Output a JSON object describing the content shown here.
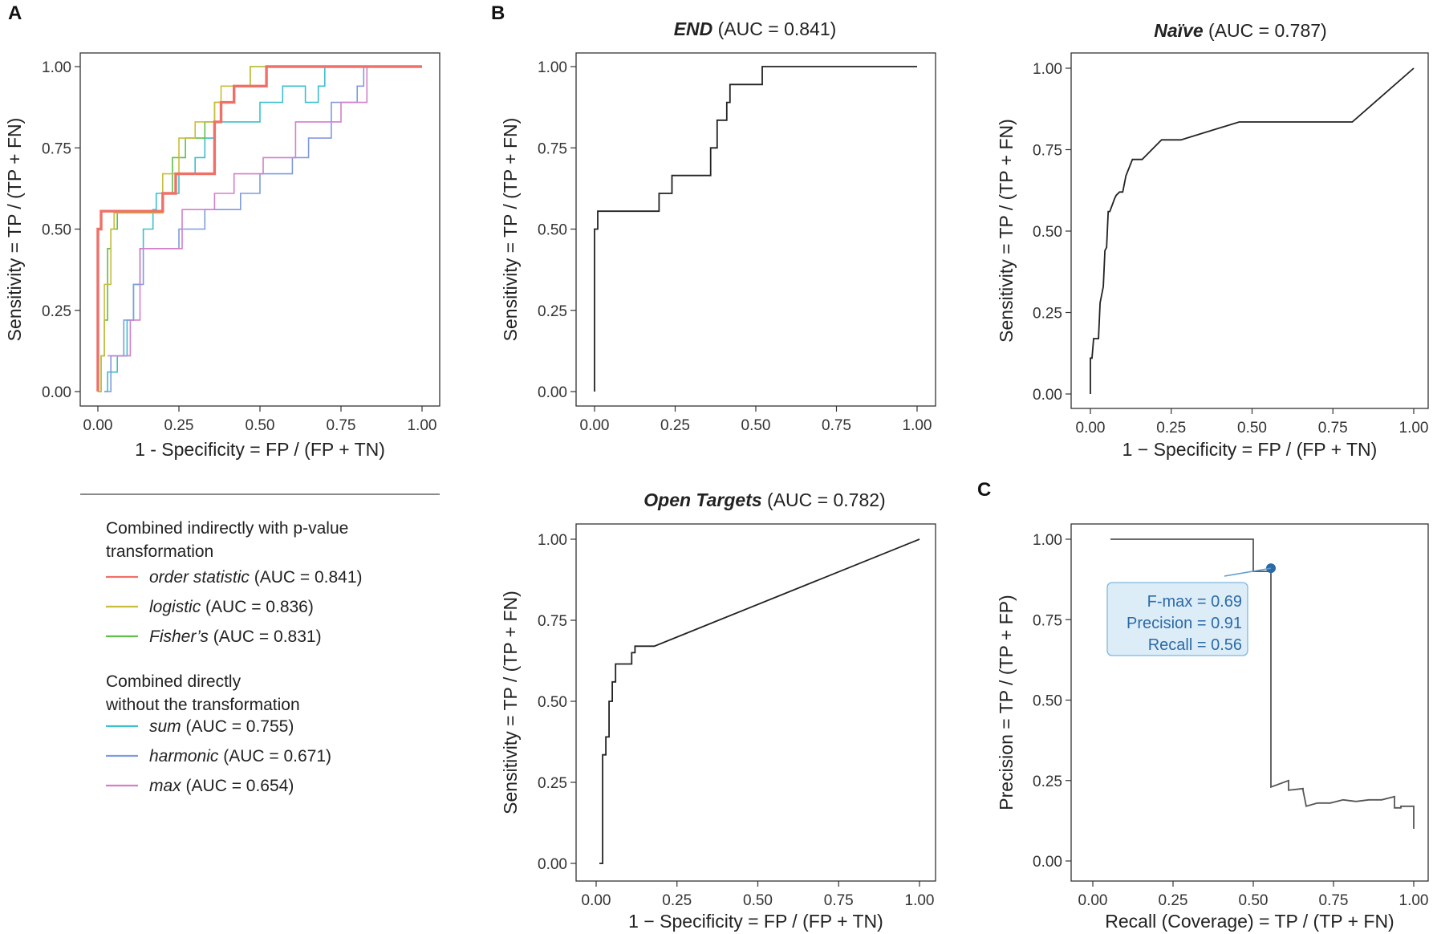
{
  "panels": {
    "a": "A",
    "b": "B",
    "c": "C"
  },
  "chart_data": [
    {
      "id": "combined",
      "type": "line",
      "title": "",
      "xlabel": "1 - Specificity = FP / (FP + TN)",
      "ylabel": "Sensitivity = TP / (TP + FN)",
      "xlim": [
        0,
        1
      ],
      "ylim": [
        0,
        1
      ],
      "xticks": [
        "0.00",
        "0.25",
        "0.50",
        "0.75",
        "1.00"
      ],
      "yticks": [
        "0.00",
        "0.25",
        "0.50",
        "0.75",
        "1.00"
      ],
      "series": [
        {
          "name": "sum",
          "color": "#3bbfcc",
          "width": 1.6,
          "x": [
            0.02,
            0.03,
            0.03,
            0.06,
            0.06,
            0.09,
            0.09,
            0.11,
            0.11,
            0.13,
            0.13,
            0.14,
            0.14,
            0.17,
            0.17,
            0.18,
            0.18,
            0.25,
            0.25,
            0.3,
            0.3,
            0.33,
            0.33,
            0.36,
            0.36,
            0.5,
            0.5,
            0.57,
            0.57,
            0.64,
            0.64,
            0.68,
            0.68,
            0.7,
            0.7,
            1.0
          ],
          "y": [
            0.0,
            0.0,
            0.06,
            0.06,
            0.11,
            0.11,
            0.22,
            0.22,
            0.33,
            0.33,
            0.44,
            0.44,
            0.5,
            0.5,
            0.56,
            0.56,
            0.61,
            0.61,
            0.67,
            0.67,
            0.72,
            0.72,
            0.78,
            0.78,
            0.83,
            0.83,
            0.89,
            0.89,
            0.94,
            0.94,
            0.89,
            0.89,
            0.94,
            0.94,
            1.0,
            1.0
          ]
        },
        {
          "name": "harmonic",
          "color": "#7e9be0",
          "width": 1.6,
          "x": [
            0.02,
            0.04,
            0.04,
            0.08,
            0.08,
            0.11,
            0.11,
            0.14,
            0.14,
            0.25,
            0.25,
            0.33,
            0.33,
            0.44,
            0.44,
            0.5,
            0.5,
            0.6,
            0.6,
            0.65,
            0.65,
            0.72,
            0.72,
            0.8,
            0.8,
            0.82,
            0.82,
            1.0
          ],
          "y": [
            0.0,
            0.0,
            0.11,
            0.11,
            0.22,
            0.22,
            0.33,
            0.33,
            0.44,
            0.44,
            0.5,
            0.5,
            0.56,
            0.56,
            0.61,
            0.61,
            0.67,
            0.67,
            0.72,
            0.72,
            0.78,
            0.78,
            0.89,
            0.89,
            0.94,
            0.94,
            1.0,
            1.0
          ]
        },
        {
          "name": "max",
          "color": "#d37fc9",
          "width": 1.6,
          "x": [
            0.03,
            0.1,
            0.1,
            0.13,
            0.13,
            0.26,
            0.26,
            0.36,
            0.36,
            0.42,
            0.42,
            0.51,
            0.51,
            0.61,
            0.61,
            0.75,
            0.75,
            0.83,
            0.83,
            1.0
          ],
          "y": [
            0.11,
            0.11,
            0.22,
            0.22,
            0.44,
            0.44,
            0.56,
            0.56,
            0.61,
            0.61,
            0.67,
            0.67,
            0.72,
            0.72,
            0.83,
            0.83,
            0.89,
            0.89,
            1.0,
            1.0
          ]
        },
        {
          "name": "Fisher's",
          "color": "#5fbf4a",
          "width": 1.6,
          "x": [
            0.0,
            0.01,
            0.01,
            0.02,
            0.02,
            0.03,
            0.03,
            0.04,
            0.04,
            0.06,
            0.06,
            0.1,
            0.1,
            0.2,
            0.2,
            0.23,
            0.23,
            0.27,
            0.27,
            0.33,
            0.33,
            0.36,
            0.36,
            0.42,
            0.42,
            0.47,
            0.47,
            0.51,
            0.51,
            1.0
          ],
          "y": [
            0.0,
            0.0,
            0.11,
            0.11,
            0.22,
            0.22,
            0.44,
            0.44,
            0.5,
            0.5,
            0.55,
            0.55,
            0.55,
            0.55,
            0.61,
            0.61,
            0.72,
            0.72,
            0.78,
            0.78,
            0.83,
            0.83,
            0.89,
            0.89,
            0.94,
            0.94,
            1.0,
            1.0,
            1.0,
            1.0
          ]
        },
        {
          "name": "logistic",
          "color": "#c9bd3c",
          "width": 1.6,
          "x": [
            0.0,
            0.01,
            0.01,
            0.02,
            0.02,
            0.04,
            0.04,
            0.05,
            0.05,
            0.1,
            0.1,
            0.2,
            0.2,
            0.25,
            0.25,
            0.3,
            0.3,
            0.36,
            0.36,
            0.38,
            0.38,
            0.47,
            0.47,
            0.5,
            0.5,
            1.0
          ],
          "y": [
            0.0,
            0.0,
            0.11,
            0.11,
            0.33,
            0.33,
            0.5,
            0.5,
            0.55,
            0.55,
            0.55,
            0.55,
            0.67,
            0.67,
            0.78,
            0.78,
            0.83,
            0.83,
            0.89,
            0.89,
            0.94,
            0.94,
            1.0,
            1.0,
            1.0,
            1.0
          ]
        },
        {
          "name": "order statistic",
          "color": "#f07068",
          "width": 3.4,
          "x": [
            0.0,
            0.0,
            0.005,
            0.005,
            0.01,
            0.01,
            0.2,
            0.2,
            0.24,
            0.24,
            0.36,
            0.36,
            0.38,
            0.38,
            0.42,
            0.42,
            0.52,
            0.52,
            1.0
          ],
          "y": [
            0.0,
            0.5,
            0.5,
            0.5,
            0.5,
            0.555,
            0.555,
            0.61,
            0.61,
            0.67,
            0.67,
            0.83,
            0.83,
            0.89,
            0.89,
            0.94,
            0.94,
            1.0,
            1.0
          ]
        }
      ],
      "legend": {
        "group1_title_line1": "Combined indirectly with p-value",
        "group1_title_line2": "transformation",
        "group2_title_line1": "Combined directly",
        "group2_title_line2": "without the transformation",
        "entries": [
          {
            "name": "order statistic",
            "auc": " (AUC = 0.841)",
            "color": "#f07068"
          },
          {
            "name": "logistic",
            "auc": " (AUC = 0.836)",
            "color": "#c9bd3c"
          },
          {
            "name": "Fisher’s",
            "auc": " (AUC = 0.831)",
            "color": "#5fbf4a"
          },
          {
            "name": "sum",
            "auc": " (AUC = 0.755)",
            "color": "#3bbfcc"
          },
          {
            "name": "harmonic",
            "auc": " (AUC = 0.671)",
            "color": "#7e9be0"
          },
          {
            "name": "max",
            "auc": " (AUC = 0.654)",
            "color": "#d37fc9"
          }
        ]
      }
    },
    {
      "id": "end",
      "type": "line",
      "title_bold": "END",
      "title_rest": " (AUC = 0.841)",
      "xlabel": "",
      "ylabel": "Sensitivity = TP / (TP + FN)",
      "xlim": [
        0,
        1
      ],
      "ylim": [
        0,
        1
      ],
      "xticks": [
        "0.00",
        "0.25",
        "0.50",
        "0.75",
        "1.00"
      ],
      "yticks": [
        "0.00",
        "0.25",
        "0.50",
        "0.75",
        "1.00"
      ],
      "series": [
        {
          "name": "END",
          "color": "#222222",
          "x": [
            0.0,
            0.0,
            0.01,
            0.01,
            0.2,
            0.2,
            0.24,
            0.24,
            0.36,
            0.36,
            0.38,
            0.38,
            0.41,
            0.41,
            0.42,
            0.42,
            0.52,
            0.52,
            1.0
          ],
          "y": [
            0.0,
            0.5,
            0.5,
            0.555,
            0.555,
            0.61,
            0.61,
            0.665,
            0.665,
            0.75,
            0.75,
            0.835,
            0.835,
            0.89,
            0.89,
            0.945,
            0.945,
            1.0,
            1.0
          ]
        }
      ]
    },
    {
      "id": "naive",
      "type": "line",
      "title_bold": "Naïve",
      "title_rest": " (AUC = 0.787)",
      "xlabel": "1 − Specificity = FP / (FP + TN)",
      "ylabel": "Sensitivity = TP / (TP + FN)",
      "xlim": [
        0,
        1
      ],
      "ylim": [
        0,
        1
      ],
      "xticks": [
        "0.00",
        "0.25",
        "0.50",
        "0.75",
        "1.00"
      ],
      "yticks": [
        "0.00",
        "0.25",
        "0.50",
        "0.75",
        "1.00"
      ],
      "series": [
        {
          "name": "Naive",
          "color": "#222222",
          "x": [
            0.0,
            0.0,
            0.005,
            0.01,
            0.015,
            0.025,
            0.03,
            0.04,
            0.045,
            0.05,
            0.055,
            0.06,
            0.075,
            0.08,
            0.09,
            0.1,
            0.11,
            0.13,
            0.16,
            0.22,
            0.28,
            0.46,
            0.81,
            1.0
          ],
          "y": [
            0.0,
            0.11,
            0.11,
            0.17,
            0.17,
            0.17,
            0.28,
            0.33,
            0.44,
            0.45,
            0.56,
            0.56,
            0.6,
            0.61,
            0.62,
            0.62,
            0.67,
            0.72,
            0.72,
            0.78,
            0.78,
            0.835,
            0.835,
            1.0
          ]
        }
      ]
    },
    {
      "id": "open-targets",
      "type": "line",
      "title_bold": "Open Targets",
      "title_rest": " (AUC = 0.782)",
      "xlabel": "1 − Specificity = FP / (FP + TN)",
      "ylabel": "Sensitivity = TP / (TP + FN)",
      "xlim": [
        0,
        1
      ],
      "ylim": [
        0,
        1
      ],
      "xticks": [
        "0.00",
        "0.25",
        "0.50",
        "0.75",
        "1.00"
      ],
      "yticks": [
        "0.00",
        "0.25",
        "0.50",
        "0.75",
        "1.00"
      ],
      "series": [
        {
          "name": "Open Targets",
          "color": "#222222",
          "x": [
            0.01,
            0.02,
            0.02,
            0.03,
            0.03,
            0.04,
            0.04,
            0.05,
            0.05,
            0.06,
            0.06,
            0.08,
            0.08,
            0.11,
            0.11,
            0.12,
            0.12,
            0.18,
            1.0
          ],
          "y": [
            0.0,
            0.0,
            0.335,
            0.335,
            0.39,
            0.39,
            0.5,
            0.5,
            0.56,
            0.56,
            0.615,
            0.615,
            0.615,
            0.615,
            0.65,
            0.65,
            0.67,
            0.67,
            1.0
          ]
        }
      ]
    },
    {
      "id": "precision-recall",
      "type": "line",
      "title": "",
      "xlabel": "Recall (Coverage) = TP / (TP + FN)",
      "ylabel": "Precision = TP / (TP + FP)",
      "xlim": [
        0,
        1
      ],
      "ylim": [
        0,
        1
      ],
      "xticks": [
        "0.00",
        "0.25",
        "0.50",
        "0.75",
        "1.00"
      ],
      "yticks": [
        "0.00",
        "0.25",
        "0.50",
        "0.75",
        "1.00"
      ],
      "series": [
        {
          "name": "PR",
          "color": "#555555",
          "x": [
            0.055,
            0.5,
            0.5,
            0.555,
            0.555,
            0.555,
            0.61,
            0.61,
            0.655,
            0.655,
            0.665,
            0.7,
            0.74,
            0.78,
            0.82,
            0.86,
            0.9,
            0.94,
            0.94,
            0.96,
            0.96,
            1.0,
            1.0
          ],
          "y": [
            1.0,
            1.0,
            0.9,
            0.9,
            0.91,
            0.23,
            0.25,
            0.22,
            0.225,
            0.22,
            0.17,
            0.18,
            0.18,
            0.19,
            0.185,
            0.19,
            0.19,
            0.2,
            0.165,
            0.165,
            0.17,
            0.17,
            0.1
          ]
        }
      ],
      "fmax_point": {
        "x": 0.555,
        "y": 0.91,
        "color": "#2c6aa6"
      },
      "annotation": {
        "fmax": "F-max = 0.69",
        "precision": "Precision = 0.91",
        "recall": "Recall = 0.56"
      }
    }
  ]
}
